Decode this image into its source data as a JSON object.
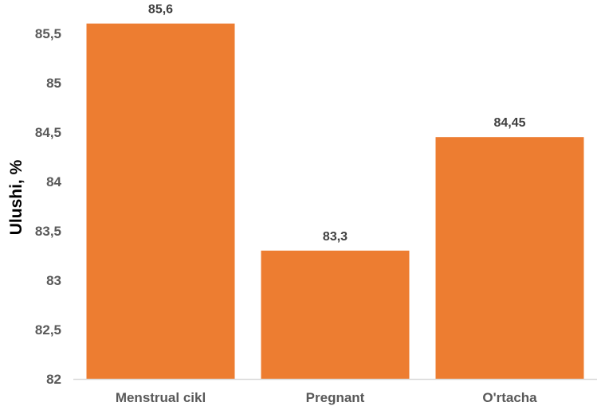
{
  "chart_data": {
    "type": "bar",
    "title": "",
    "xlabel": "",
    "ylabel": "Ulushi, %",
    "categories": [
      "Menstrual cikl",
      "Pregnant",
      "O'rtacha"
    ],
    "values": [
      85.6,
      83.3,
      84.45
    ],
    "value_labels": [
      "85,6",
      "83,3",
      "84,45"
    ],
    "ylim": [
      82,
      85.5
    ],
    "yticks": [
      82,
      82.5,
      83,
      83.5,
      84,
      84.5,
      85,
      85.5
    ],
    "ytick_labels": [
      "82",
      "82,5",
      "83",
      "83,5",
      "84",
      "84,5",
      "85",
      "85,5"
    ],
    "grid": false,
    "legend": "none",
    "bar_color": "#ED7D31",
    "axis_color": "#D9D9D9",
    "tick_label_color": "#595959",
    "data_label_color": "#404040"
  }
}
